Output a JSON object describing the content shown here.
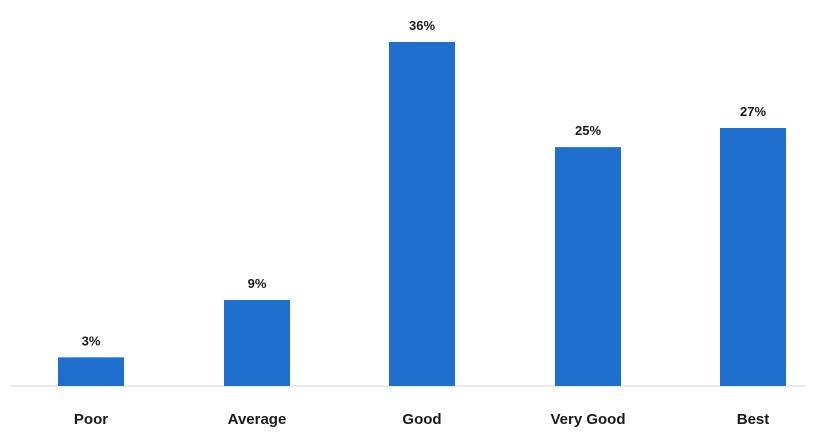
{
  "chart_data": {
    "type": "bar",
    "categories": [
      "Poor",
      "Average",
      "Good",
      "Very Good",
      "Best"
    ],
    "values": [
      3,
      9,
      36,
      25,
      27
    ],
    "value_labels": [
      "3%",
      "9%",
      "36%",
      "25%",
      "27%"
    ],
    "title": "",
    "xlabel": "",
    "ylabel": "",
    "ylim": [
      0,
      36
    ],
    "grid": false,
    "legend": "none",
    "colors": {
      "bar": "#1f6fcf"
    }
  }
}
